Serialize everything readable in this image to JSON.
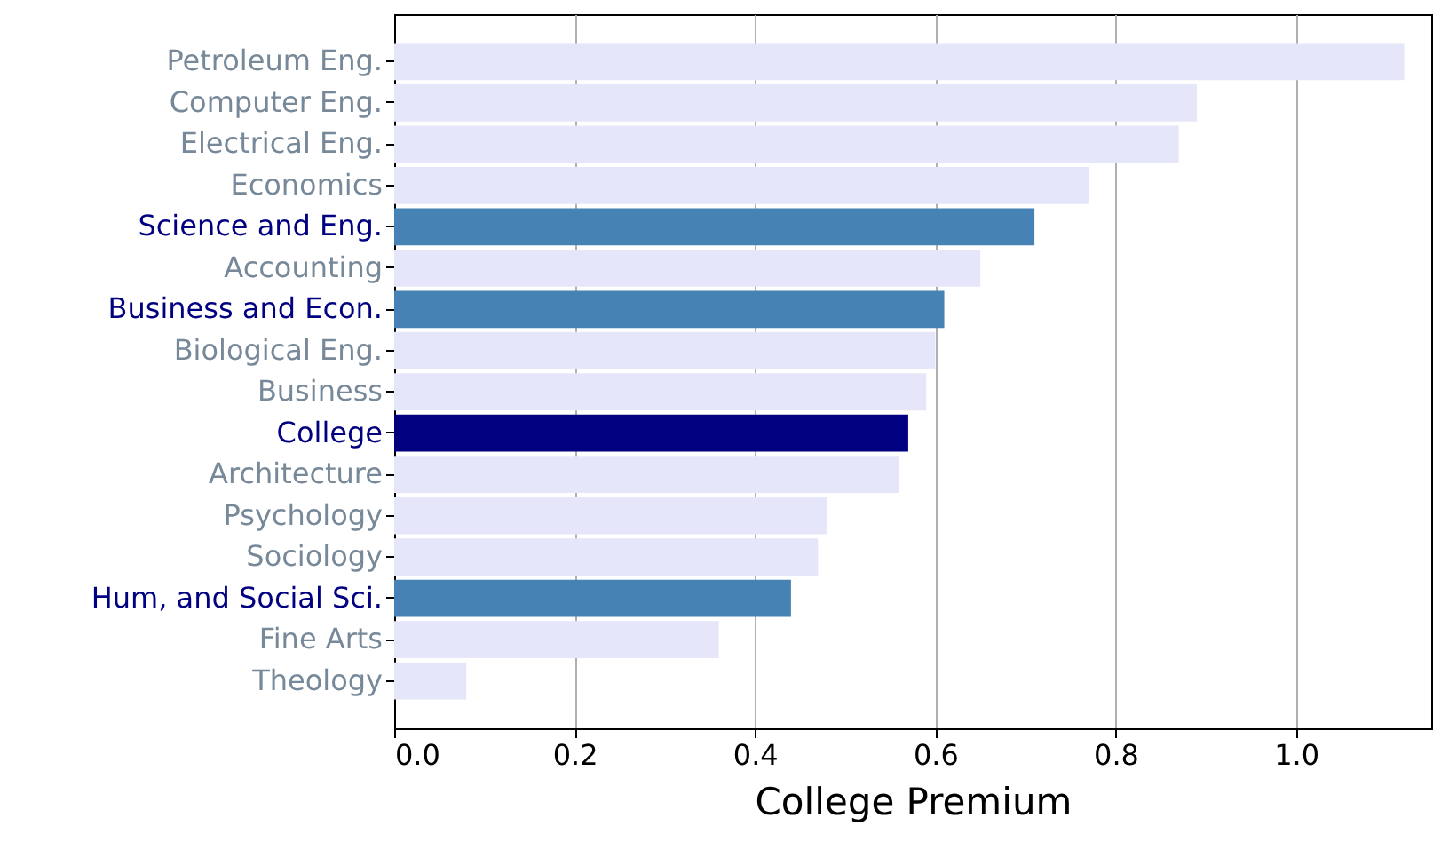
{
  "chart_data": {
    "type": "bar",
    "orientation": "horizontal",
    "xlabel": "College Premium",
    "categories": [
      "Petroleum Eng.",
      "Computer Eng.",
      "Electrical Eng.",
      "Economics",
      "Science and Eng.",
      "Accounting",
      "Business and Econ.",
      "Biological Eng.",
      "Business",
      "College",
      "Architecture",
      "Psychology",
      "Sociology",
      "Hum, and Social Sci.",
      "Fine Arts",
      "Theology"
    ],
    "values": [
      1.12,
      0.89,
      0.87,
      0.77,
      0.71,
      0.65,
      0.61,
      0.6,
      0.59,
      0.57,
      0.56,
      0.48,
      0.47,
      0.44,
      0.36,
      0.08
    ],
    "colors": [
      "#e6e6fa",
      "#e6e6fa",
      "#e6e6fa",
      "#e6e6fa",
      "#4682b4",
      "#e6e6fa",
      "#4682b4",
      "#e6e6fa",
      "#e6e6fa",
      "#000080",
      "#e6e6fa",
      "#e6e6fa",
      "#e6e6fa",
      "#4682b4",
      "#e6e6fa",
      "#e6e6fa"
    ],
    "xlim": [
      0,
      1.15
    ],
    "xticks": [
      {
        "value": 0,
        "label": "0.0"
      },
      {
        "value": 0.2,
        "label": "0.2"
      },
      {
        "value": 0.4,
        "label": "0.4"
      },
      {
        "value": 0.6,
        "label": "0.6"
      },
      {
        "value": 0.8,
        "label": "0.8"
      },
      {
        "value": 1,
        "label": "1.0"
      }
    ],
    "grid": "x"
  }
}
